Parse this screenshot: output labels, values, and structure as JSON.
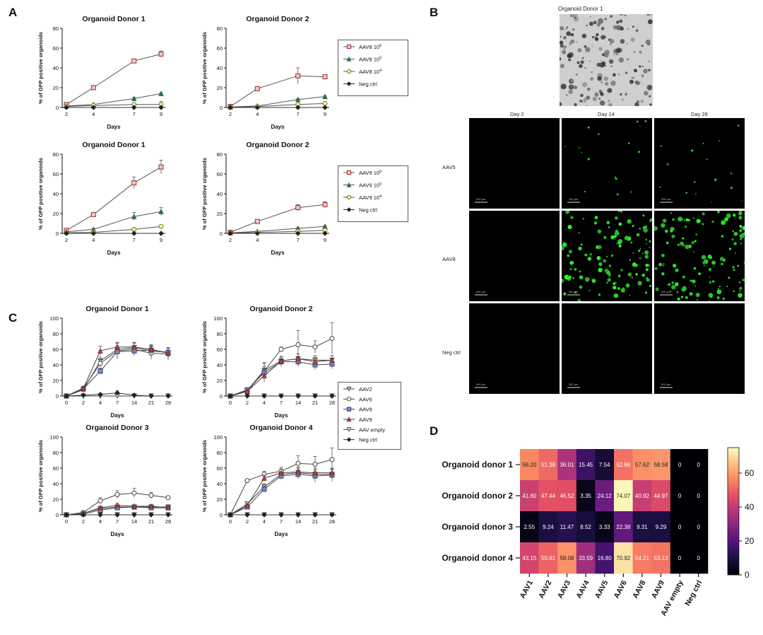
{
  "panels": {
    "A": "A",
    "B": "B",
    "C": "C",
    "D": "D"
  },
  "common": {
    "ylabel": "% of GFP positive organoids",
    "xlabel": "Days"
  },
  "panelA": {
    "legend_aav8": [
      "AAV8 10^6",
      "AAV8 10^5",
      "AAV8 10^4",
      "Neg ctrl"
    ],
    "legend_aav9": [
      "AAV9 10^6",
      "AAV9 10^5",
      "AAV9 10^4",
      "Neg ctrl"
    ]
  },
  "panelB": {
    "top_title": "Organoid Donor 1",
    "col_headers": [
      "Day 2",
      "Day 14",
      "Day 28"
    ],
    "row_labels": [
      "AAV5",
      "AAV8",
      "Neg ctrl"
    ],
    "scale_labels": [
      [
        "500 µm",
        "100 µm",
        "500 µm"
      ],
      [
        "500 µm",
        "500 µm",
        "500 µm"
      ],
      [
        "500 µm",
        "500 µm",
        "500 µm"
      ]
    ]
  },
  "panelC": {
    "legend": [
      "AAV2",
      "AAV6",
      "AAV8",
      "AAV9",
      "AAV empty",
      "Neg ctrl"
    ]
  },
  "chart_data": [
    {
      "id": "A1",
      "type": "line",
      "title": "Organoid Donor 1",
      "xlabel": "Days",
      "ylabel": "% of GFP positive organoids",
      "x": [
        2,
        4,
        7,
        9
      ],
      "xticks": [
        "2",
        "4",
        "7",
        "9"
      ],
      "ylim": [
        0,
        80
      ],
      "yticks": [
        0,
        20,
        40,
        60,
        80
      ],
      "series": [
        {
          "name": "AAV8 10^6",
          "values": [
            3,
            20,
            47,
            54
          ],
          "err": [
            0.5,
            1,
            1,
            3
          ]
        },
        {
          "name": "AAV8 10^5",
          "values": [
            1.5,
            3,
            9,
            14
          ],
          "err": [
            0.3,
            0.5,
            1,
            1
          ]
        },
        {
          "name": "AAV8 10^4",
          "values": [
            1,
            2,
            3,
            3
          ],
          "err": [
            0.3,
            0.4,
            0.6,
            3
          ]
        },
        {
          "name": "Neg ctrl",
          "values": [
            0,
            0,
            0,
            0
          ],
          "err": [
            0,
            0,
            0,
            0
          ]
        }
      ]
    },
    {
      "id": "A2",
      "type": "line",
      "title": "Organoid Donor 2",
      "xlabel": "Days",
      "ylabel": "% of GFP positive organoids",
      "x": [
        2,
        4,
        7,
        9
      ],
      "xticks": [
        "2",
        "4",
        "7",
        "9"
      ],
      "ylim": [
        0,
        80
      ],
      "yticks": [
        0,
        20,
        40,
        60,
        80
      ],
      "series": [
        {
          "name": "AAV8 10^6",
          "values": [
            1,
            19,
            32,
            31
          ],
          "err": [
            0.5,
            2,
            8,
            1
          ]
        },
        {
          "name": "AAV8 10^5",
          "values": [
            0.5,
            1.5,
            8,
            11
          ],
          "err": [
            0.2,
            0.4,
            1,
            1
          ]
        },
        {
          "name": "AAV8 10^4",
          "values": [
            0.3,
            1,
            3,
            4
          ],
          "err": [
            0.2,
            0.3,
            0.5,
            0.5
          ]
        },
        {
          "name": "Neg ctrl",
          "values": [
            0,
            0,
            0,
            0
          ],
          "err": [
            0,
            0,
            0,
            0
          ]
        }
      ]
    },
    {
      "id": "A3",
      "type": "line",
      "title": "Organoid Donor 1",
      "xlabel": "Days",
      "ylabel": "% of GFP positive organoids",
      "x": [
        2,
        4,
        7,
        9
      ],
      "xticks": [
        "2",
        "4",
        "7",
        "9"
      ],
      "ylim": [
        0,
        80
      ],
      "yticks": [
        0,
        20,
        40,
        60,
        80
      ],
      "series": [
        {
          "name": "AAV9 10^6",
          "values": [
            3,
            19,
            51,
            67
          ],
          "err": [
            0.5,
            2,
            6,
            7
          ]
        },
        {
          "name": "AAV9 10^5",
          "values": [
            1.5,
            4,
            17,
            22
          ],
          "err": [
            0.3,
            1,
            4,
            4
          ]
        },
        {
          "name": "AAV9 10^4",
          "values": [
            0.5,
            1,
            4,
            7
          ],
          "err": [
            0.2,
            0.3,
            0.6,
            0.8
          ]
        },
        {
          "name": "Neg ctrl",
          "values": [
            0,
            0,
            0,
            0
          ],
          "err": [
            0,
            0,
            0,
            0
          ]
        }
      ]
    },
    {
      "id": "A4",
      "type": "line",
      "title": "Organoid Donor 2",
      "xlabel": "Days",
      "ylabel": "% of GFP positive organoids",
      "x": [
        2,
        4,
        7,
        9
      ],
      "xticks": [
        "2",
        "4",
        "7",
        "9"
      ],
      "ylim": [
        0,
        80
      ],
      "yticks": [
        0,
        20,
        40,
        60,
        80
      ],
      "series": [
        {
          "name": "AAV9 10^6",
          "values": [
            1,
            12,
            26,
            29
          ],
          "err": [
            0.3,
            1,
            3,
            3
          ]
        },
        {
          "name": "AAV9 10^5",
          "values": [
            0.5,
            2,
            5,
            7
          ],
          "err": [
            0.2,
            0.4,
            1,
            1
          ]
        },
        {
          "name": "AAV9 10^4",
          "values": [
            0.3,
            1,
            2,
            3
          ],
          "err": [
            0.2,
            0.3,
            0.4,
            0.5
          ]
        },
        {
          "name": "Neg ctrl",
          "values": [
            0,
            0,
            0,
            0
          ],
          "err": [
            0,
            0,
            0,
            0
          ]
        }
      ]
    },
    {
      "id": "C1",
      "type": "line",
      "title": "Organoid Donor 1",
      "xlabel": "Days",
      "ylabel": "% of GFP positive organoids",
      "x": [
        0,
        2,
        4,
        7,
        14,
        21,
        28
      ],
      "xticks": [
        "0",
        "2",
        "4",
        "7",
        "14",
        "21",
        "28"
      ],
      "ylim": [
        0,
        100
      ],
      "yticks": [
        0,
        20,
        40,
        60,
        80,
        100
      ],
      "series": [
        {
          "name": "AAV2",
          "values": [
            0,
            8,
            45,
            60,
            62,
            58,
            56
          ],
          "err": [
            0,
            2,
            5,
            8,
            6,
            6,
            6
          ]
        },
        {
          "name": "AAV6",
          "values": [
            0,
            10,
            42,
            58,
            60,
            55,
            54
          ],
          "err": [
            0,
            2,
            5,
            10,
            8,
            8,
            8
          ]
        },
        {
          "name": "AAV8",
          "values": [
            0,
            9,
            32,
            57,
            58,
            59,
            56
          ],
          "err": [
            0,
            2,
            4,
            8,
            6,
            6,
            6
          ]
        },
        {
          "name": "AAV9",
          "values": [
            0,
            10,
            58,
            63,
            63,
            60,
            55
          ],
          "err": [
            0,
            2,
            6,
            6,
            6,
            6,
            6
          ]
        },
        {
          "name": "AAV empty",
          "values": [
            0,
            0,
            0,
            0,
            0,
            0,
            0
          ],
          "err": [
            0,
            0,
            0,
            0,
            0,
            0,
            0
          ]
        },
        {
          "name": "Neg ctrl",
          "values": [
            0,
            1,
            2,
            4,
            1,
            0,
            0
          ],
          "err": [
            0,
            0,
            0,
            3,
            0,
            0,
            0
          ]
        }
      ]
    },
    {
      "id": "C2",
      "type": "line",
      "title": "Organoid Donor 2",
      "xlabel": "Days",
      "ylabel": "% of GFP positive organoids",
      "x": [
        0,
        2,
        4,
        7,
        14,
        21,
        28
      ],
      "xticks": [
        "0",
        "2",
        "4",
        "7",
        "14",
        "21",
        "28"
      ],
      "ylim": [
        0,
        100
      ],
      "yticks": [
        0,
        20,
        40,
        60,
        80,
        100
      ],
      "series": [
        {
          "name": "AAV2",
          "values": [
            0,
            7,
            33,
            45,
            48,
            46,
            46
          ],
          "err": [
            0,
            2,
            10,
            6,
            6,
            6,
            6
          ]
        },
        {
          "name": "AAV6",
          "values": [
            0,
            6,
            32,
            60,
            66,
            63,
            74
          ],
          "err": [
            0,
            2,
            10,
            3,
            18,
            8,
            20
          ]
        },
        {
          "name": "AAV8",
          "values": [
            0,
            8,
            30,
            44,
            44,
            40,
            41
          ],
          "err": [
            0,
            2,
            8,
            6,
            6,
            6,
            6
          ]
        },
        {
          "name": "AAV9",
          "values": [
            0,
            6,
            26,
            45,
            48,
            44,
            46
          ],
          "err": [
            0,
            2,
            8,
            6,
            6,
            6,
            6
          ]
        },
        {
          "name": "AAV empty",
          "values": [
            0,
            0,
            0,
            0,
            0,
            0,
            0
          ],
          "err": [
            0,
            0,
            0,
            0,
            0,
            0,
            0
          ]
        },
        {
          "name": "Neg ctrl",
          "values": [
            0,
            0,
            0,
            0,
            0,
            0,
            0
          ],
          "err": [
            0,
            0,
            0,
            0,
            0,
            0,
            0
          ]
        }
      ]
    },
    {
      "id": "C3",
      "type": "line",
      "title": "Organoid Donor 3",
      "xlabel": "Days",
      "ylabel": "% of GFP positive organoids",
      "x": [
        0,
        2,
        4,
        7,
        14,
        21,
        28
      ],
      "xticks": [
        "0",
        "2",
        "4",
        "7",
        "14",
        "21",
        "28"
      ],
      "ylim": [
        0,
        100
      ],
      "yticks": [
        0,
        20,
        40,
        60,
        80,
        100
      ],
      "series": [
        {
          "name": "AAV2",
          "values": [
            0,
            2,
            8,
            10,
            10,
            10,
            10
          ],
          "err": [
            0,
            1,
            2,
            2,
            2,
            2,
            1
          ]
        },
        {
          "name": "AAV6",
          "values": [
            0,
            3,
            18,
            26,
            28,
            25,
            22
          ],
          "err": [
            0,
            1,
            4,
            5,
            6,
            4,
            2
          ]
        },
        {
          "name": "AAV8",
          "values": [
            0,
            1,
            6,
            9,
            10,
            9,
            9
          ],
          "err": [
            0,
            0.5,
            2,
            2,
            2,
            2,
            1
          ]
        },
        {
          "name": "AAV9",
          "values": [
            0,
            2,
            9,
            12,
            11,
            11,
            9
          ],
          "err": [
            0,
            1,
            2,
            3,
            2,
            2,
            1
          ]
        },
        {
          "name": "AAV empty",
          "values": [
            0,
            0,
            0,
            0,
            0,
            0,
            0
          ],
          "err": [
            0,
            0,
            0,
            0,
            0,
            0,
            0
          ]
        },
        {
          "name": "Neg ctrl",
          "values": [
            0,
            0,
            0,
            0,
            0,
            0,
            0
          ],
          "err": [
            0,
            0,
            0,
            0,
            0,
            0,
            0
          ]
        }
      ]
    },
    {
      "id": "C4",
      "type": "line",
      "title": "Organoid Donor 4",
      "xlabel": "Days",
      "ylabel": "% of GFP positive organoids",
      "x": [
        0,
        2,
        4,
        7,
        14,
        21,
        28
      ],
      "xticks": [
        "0",
        "2",
        "4",
        "7",
        "14",
        "21",
        "28"
      ],
      "ylim": [
        0,
        100
      ],
      "yticks": [
        0,
        20,
        40,
        60,
        80,
        100
      ],
      "series": [
        {
          "name": "AAV2",
          "values": [
            0,
            14,
            36,
            52,
            54,
            52,
            52
          ],
          "err": [
            0,
            2,
            4,
            5,
            6,
            6,
            6
          ]
        },
        {
          "name": "AAV6",
          "values": [
            0,
            44,
            52,
            56,
            66,
            65,
            71
          ],
          "err": [
            0,
            2,
            4,
            5,
            10,
            10,
            15
          ]
        },
        {
          "name": "AAV8",
          "values": [
            0,
            10,
            33,
            50,
            52,
            50,
            51
          ],
          "err": [
            0,
            2,
            4,
            5,
            6,
            8,
            8
          ]
        },
        {
          "name": "AAV9",
          "values": [
            0,
            12,
            47,
            54,
            55,
            54,
            54
          ],
          "err": [
            0,
            2,
            4,
            5,
            6,
            6,
            6
          ]
        },
        {
          "name": "AAV empty",
          "values": [
            0,
            0,
            0,
            0,
            0,
            0,
            0
          ],
          "err": [
            0,
            0,
            0,
            0,
            0,
            0,
            0
          ]
        },
        {
          "name": "Neg ctrl",
          "values": [
            0,
            0,
            0,
            0,
            0,
            0,
            0
          ],
          "err": [
            0,
            0,
            0,
            0,
            0,
            0,
            0
          ]
        }
      ]
    },
    {
      "id": "D",
      "type": "heatmap",
      "rows": [
        "Organoid donor 1",
        "Organoid donor 2",
        "Organoid donor 3",
        "Organoid donor 4"
      ],
      "cols": [
        "AAV1",
        "AAV2",
        "AAV3",
        "AAV4",
        "AAV5",
        "AAV6",
        "AAV8",
        "AAV9",
        "AAV empty",
        "Neg ctrl"
      ],
      "values": [
        [
          "56.20",
          "51.38",
          "36.01",
          "15.45",
          "7.54",
          "52.66",
          "57.62",
          "58.58",
          "0",
          "0"
        ],
        [
          "41.60",
          "47.44",
          "46.52",
          "3.35",
          "24.12",
          "74.07",
          "40.92",
          "44.97",
          "0",
          "0"
        ],
        [
          "2.55",
          "9.24",
          "11.47",
          "8.52",
          "3.33",
          "22.38",
          "9.31",
          "9.29",
          "0",
          "0"
        ],
        [
          "43.15",
          "50.41",
          "58.08",
          "33.59",
          "16.80",
          "70.92",
          "54.21",
          "53.13",
          "0",
          "0"
        ]
      ],
      "vmin": 0,
      "vmax": 75,
      "colorbar_ticks": [
        "0",
        "20",
        "40",
        "60"
      ]
    }
  ]
}
